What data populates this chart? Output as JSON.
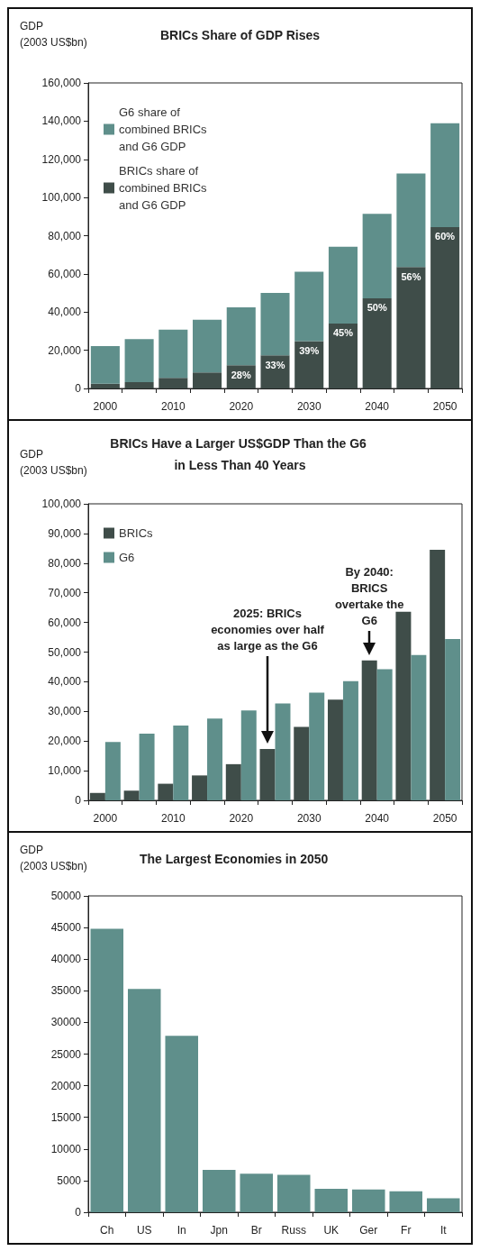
{
  "chart_data": [
    {
      "type": "bar",
      "title": "BRICs Share of GDP Rises",
      "ylabel": "GDP\n(2003 US$bn)",
      "categories": [
        "2000",
        null,
        "2010",
        null,
        "2020",
        null,
        "2030",
        null,
        "2040",
        null,
        "2050"
      ],
      "stacked": true,
      "series": [
        {
          "name": "BRICs share of combined BRICs and G6 GDP",
          "color": "#3f4d49",
          "values": [
            2500,
            3300,
            5600,
            8400,
            12200,
            17300,
            24800,
            34000,
            47200,
            63600,
            84500
          ]
        },
        {
          "name": "G6 share of combined BRICs and G6 GDP",
          "color": "#5f8f8b",
          "values": [
            19700,
            22500,
            25200,
            27600,
            30300,
            32700,
            36300,
            40200,
            44200,
            49000,
            54400
          ]
        }
      ],
      "ylim": [
        0,
        160000
      ],
      "yticks": [
        {
          "value": 0,
          "label": "0"
        },
        {
          "value": 20000,
          "label": "20,000"
        },
        {
          "value": 40000,
          "label": "40,000"
        },
        {
          "value": 60000,
          "label": "60,000"
        },
        {
          "value": 80000,
          "label": "80,000"
        },
        {
          "value": 100000,
          "label": "100,000"
        },
        {
          "value": 120000,
          "label": "120,000"
        },
        {
          "value": 140000,
          "label": "140,000"
        },
        {
          "value": 160000,
          "label": "160,000"
        }
      ],
      "annotations": [
        "28%",
        "33%",
        "39%",
        "45%",
        "50%",
        "56%",
        "60%"
      ],
      "grid": false,
      "legend": "top left"
    },
    {
      "type": "bar",
      "title": "BRICs Have a Larger US$GDP Than the G6 in Less Than 40 Years",
      "ylabel": "GDP\n(2003 US$bn)",
      "categories": [
        "2000",
        null,
        "2010",
        null,
        "2020",
        null,
        "2030",
        null,
        "2040",
        null,
        "2050"
      ],
      "series": [
        {
          "name": "BRICs",
          "color": "#3f4d49",
          "values": [
            2500,
            3300,
            5600,
            8400,
            12200,
            17300,
            24800,
            34000,
            47200,
            63600,
            84500
          ]
        },
        {
          "name": "G6",
          "color": "#5f8f8b",
          "values": [
            19700,
            22500,
            25200,
            27600,
            30300,
            32700,
            36300,
            40200,
            44200,
            49000,
            54400
          ]
        }
      ],
      "ylim": [
        0,
        100000
      ],
      "yticks": [
        {
          "value": 0,
          "label": "0"
        },
        {
          "value": 10000,
          "label": "10,000"
        },
        {
          "value": 20000,
          "label": "20,000"
        },
        {
          "value": 30000,
          "label": "30,000"
        },
        {
          "value": 40000,
          "label": "40,000"
        },
        {
          "value": 50000,
          "label": "50,000"
        },
        {
          "value": 60000,
          "label": "60,000"
        },
        {
          "value": 70000,
          "label": "70,000"
        },
        {
          "value": 80000,
          "label": "80,000"
        },
        {
          "value": 90000,
          "label": "90,000"
        },
        {
          "value": 100000,
          "label": "100,000"
        }
      ],
      "annotations": [
        "2025: BRICs economies over half as large as the G6",
        "By 2040: BRICS overtake the G6"
      ],
      "grid": false,
      "legend": "top left"
    },
    {
      "type": "bar",
      "title": "The Largest Economies in 2050",
      "ylabel": "GDP\n(2003 US$bn)",
      "categories": [
        "Ch",
        "US",
        "In",
        "Jpn",
        "Br",
        "Russ",
        "UK",
        "Ger",
        "Fr",
        "It"
      ],
      "values": [
        44800,
        35300,
        27900,
        6700,
        6100,
        5900,
        3700,
        3600,
        3300,
        2200
      ],
      "color": "#5f8f8b",
      "ylim": [
        0,
        50000
      ],
      "yticks": [
        0,
        5000,
        10000,
        15000,
        20000,
        25000,
        30000,
        35000,
        40000,
        45000,
        50000
      ],
      "grid": false,
      "legend": false
    }
  ]
}
